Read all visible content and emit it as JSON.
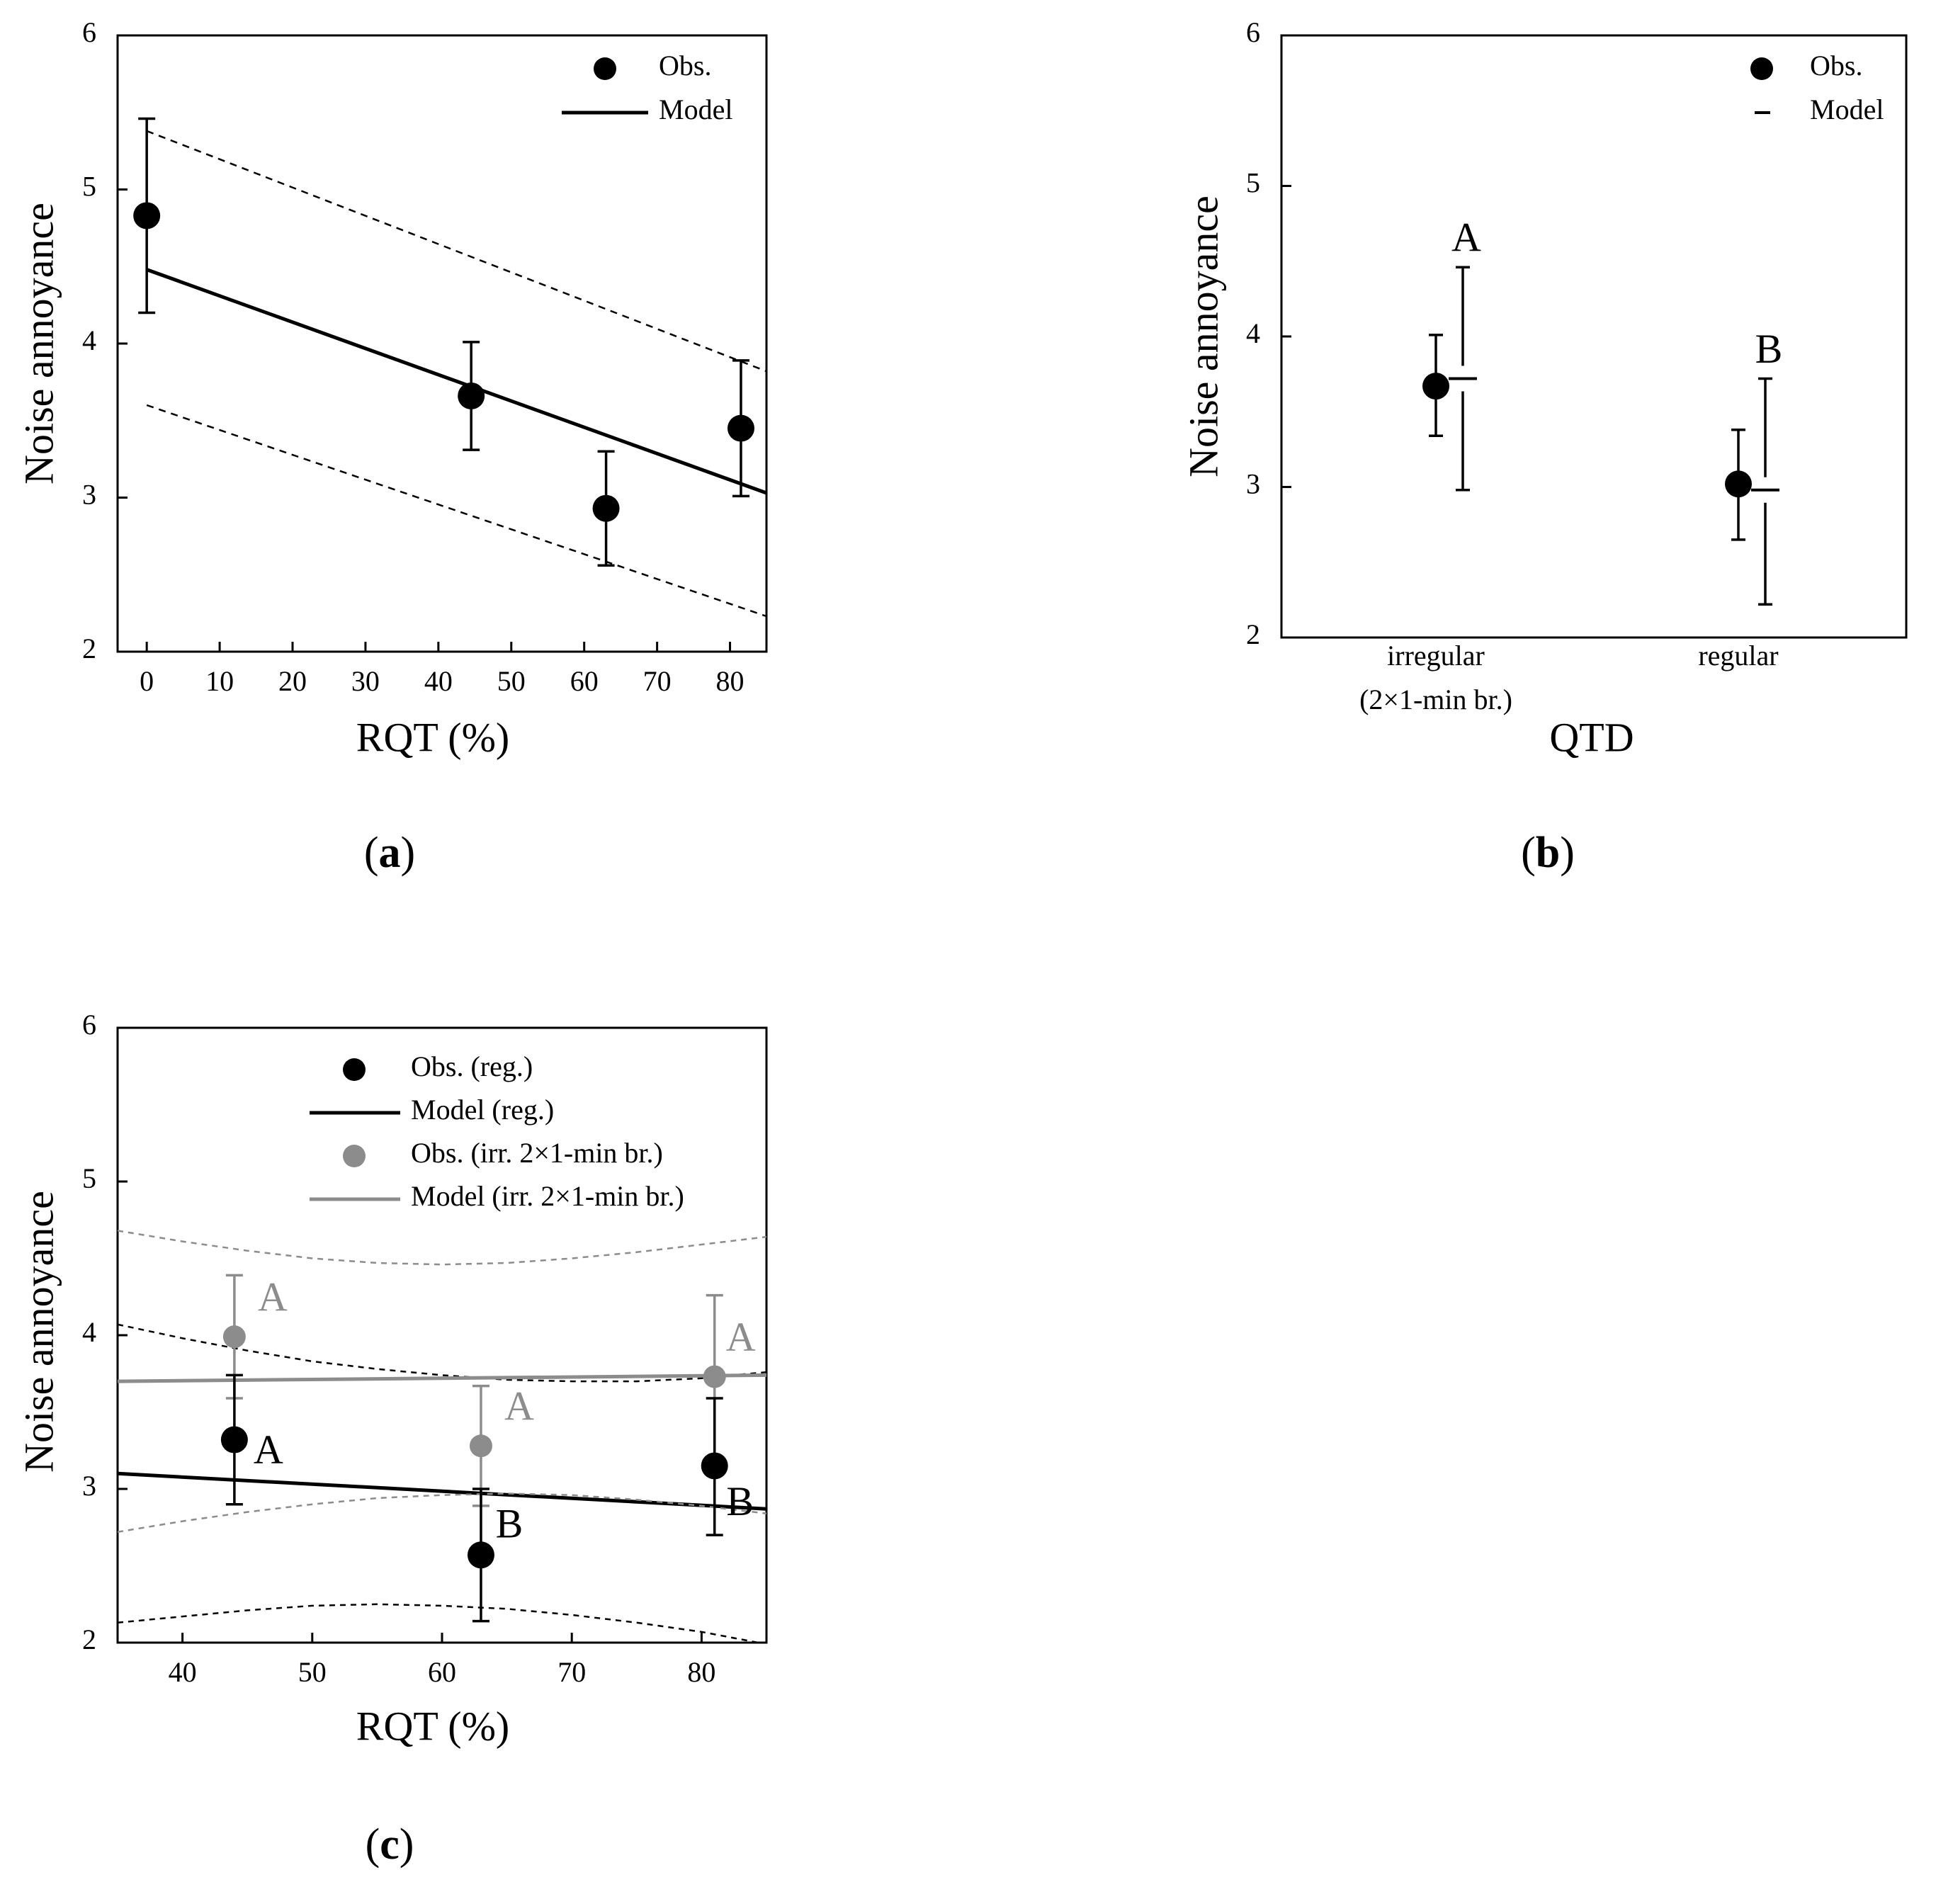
{
  "colors": {
    "black": "#000000",
    "gray": "#8c8c8c",
    "gray_text": "#8c8c8c"
  },
  "chart_data": [
    {
      "id": "a",
      "type": "scatter",
      "panel_label": "(a)",
      "panel_letter": "a",
      "xlabel": "RQT (%)",
      "ylabel": "Noise annoyance",
      "xlim": [
        -4,
        85
      ],
      "ylim": [
        2,
        6
      ],
      "xticks": [
        0,
        10,
        20,
        30,
        40,
        50,
        60,
        70,
        80
      ],
      "yticks": [
        2,
        3,
        4,
        5,
        6
      ],
      "legend": [
        "Obs.",
        "Model"
      ],
      "obs": [
        {
          "x": 0,
          "y": 4.83,
          "upper": 5.46,
          "lower": 4.2
        },
        {
          "x": 44.5,
          "y": 3.66,
          "upper": 4.01,
          "lower": 3.31
        },
        {
          "x": 63,
          "y": 2.93,
          "upper": 3.3,
          "lower": 2.56
        },
        {
          "x": 81.5,
          "y": 3.45,
          "upper": 3.89,
          "lower": 3.01
        }
      ],
      "model_line": {
        "x": [
          0,
          85
        ],
        "y": [
          4.48,
          3.03
        ]
      },
      "ci_upper": {
        "x": [
          0,
          85
        ],
        "y": [
          5.38,
          3.82
        ]
      },
      "ci_lower": {
        "x": [
          0,
          85
        ],
        "y": [
          3.6,
          2.23
        ]
      }
    },
    {
      "id": "b",
      "type": "scatter",
      "panel_label": "(b)",
      "panel_letter": "b",
      "xlabel": "QTD",
      "ylabel": "Noise annoyance",
      "ylim": [
        2,
        6
      ],
      "yticks": [
        2,
        3,
        4,
        5,
        6
      ],
      "categories": [
        "irregular",
        "regular"
      ],
      "category_sublabels": [
        "(2×1-min br.)",
        ""
      ],
      "legend": [
        "Obs.",
        "Model"
      ],
      "obs": [
        {
          "category": "irregular",
          "y": 3.67,
          "upper": 4.01,
          "lower": 3.34
        },
        {
          "category": "regular",
          "y": 3.02,
          "upper": 3.38,
          "lower": 2.65
        }
      ],
      "model": [
        {
          "category": "irregular",
          "y": 3.72,
          "upper": 4.46,
          "lower": 2.98
        },
        {
          "category": "regular",
          "y": 2.98,
          "upper": 3.72,
          "lower": 2.22
        }
      ],
      "group_letters": [
        "A",
        "B"
      ]
    },
    {
      "id": "c",
      "type": "scatter",
      "panel_label": "(c)",
      "panel_letter": "c",
      "xlabel": "RQT (%)",
      "ylabel": "Noise annoyance",
      "xlim": [
        35,
        85
      ],
      "ylim": [
        2,
        6
      ],
      "xticks": [
        40,
        50,
        60,
        70,
        80
      ],
      "yticks": [
        2,
        3,
        4,
        5,
        6
      ],
      "legend": [
        "Obs. (reg.)",
        "Model (reg.)",
        "Obs. (irr. 2×1-min br.)",
        "Model (irr. 2×1-min br.)"
      ],
      "series": [
        {
          "name": "Obs. (reg.)",
          "color": "black",
          "obs": [
            {
              "x": 44,
              "y": 3.32,
              "upper": 3.74,
              "lower": 2.9,
              "letter": "A"
            },
            {
              "x": 63,
              "y": 2.57,
              "upper": 3.0,
              "lower": 2.14,
              "letter": "B"
            },
            {
              "x": 81,
              "y": 3.15,
              "upper": 3.59,
              "lower": 2.7,
              "letter": "B"
            }
          ],
          "model_line": {
            "x": [
              35,
              85
            ],
            "y": [
              3.1,
              2.87
            ]
          },
          "ci_upper": {
            "x": [
              35,
              40,
              45,
              50,
              55,
              60,
              65,
              70,
              75,
              80,
              85
            ],
            "y": [
              4.07,
              3.98,
              3.9,
              3.83,
              3.78,
              3.74,
              3.71,
              3.7,
              3.7,
              3.72,
              3.76
            ]
          },
          "ci_lower": {
            "x": [
              35,
              40,
              45,
              50,
              55,
              60,
              65,
              70,
              75,
              80,
              85
            ],
            "y": [
              2.13,
              2.17,
              2.21,
              2.24,
              2.25,
              2.24,
              2.22,
              2.18,
              2.13,
              2.07,
              1.99
            ]
          }
        },
        {
          "name": "Obs. (irr. 2×1-min br.)",
          "color": "gray",
          "obs": [
            {
              "x": 44,
              "y": 3.99,
              "upper": 4.39,
              "lower": 3.59,
              "letter": "A"
            },
            {
              "x": 63,
              "y": 3.28,
              "upper": 3.67,
              "lower": 2.89,
              "letter": "A"
            },
            {
              "x": 81,
              "y": 3.73,
              "upper": 4.26,
              "lower": 3.2,
              "letter": "A"
            }
          ],
          "model_line": {
            "x": [
              35,
              85
            ],
            "y": [
              3.7,
              3.74
            ]
          },
          "ci_upper": {
            "x": [
              35,
              40,
              45,
              50,
              55,
              60,
              65,
              70,
              75,
              80,
              85
            ],
            "y": [
              4.68,
              4.61,
              4.55,
              4.5,
              4.47,
              4.46,
              4.47,
              4.5,
              4.54,
              4.59,
              4.64
            ]
          },
          "ci_lower": {
            "x": [
              35,
              40,
              45,
              50,
              55,
              60,
              65,
              70,
              75,
              80,
              85
            ],
            "y": [
              2.72,
              2.79,
              2.85,
              2.9,
              2.94,
              2.96,
              2.97,
              2.96,
              2.93,
              2.89,
              2.84
            ]
          }
        }
      ]
    }
  ]
}
